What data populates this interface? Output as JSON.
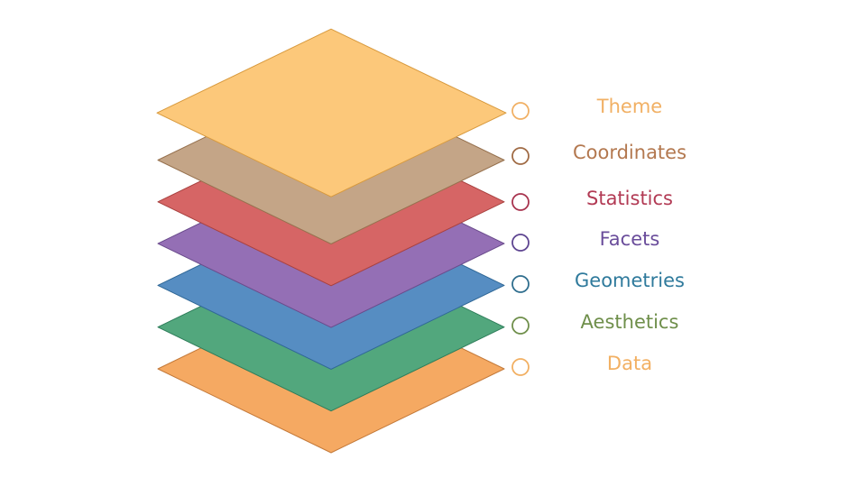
{
  "layers": [
    {
      "key": "data",
      "label": "Data",
      "fill": "#F5A962",
      "stroke": "#C47A3A",
      "label_color": "#F2B063",
      "marker_color": "#F2B063"
    },
    {
      "key": "aesthetics",
      "label": "Aesthetics",
      "fill": "#52A77D",
      "stroke": "#2E7D5A",
      "label_color": "#6F8F4B",
      "marker_color": "#6F8F4B"
    },
    {
      "key": "geometries",
      "label": "Geometries",
      "fill": "#568DC2",
      "stroke": "#2F6796",
      "label_color": "#2F7A9C",
      "marker_color": "#2F6E8E"
    },
    {
      "key": "facets",
      "label": "Facets",
      "fill": "#946FB5",
      "stroke": "#6A4B8C",
      "label_color": "#6A4D9B",
      "marker_color": "#5E4591"
    },
    {
      "key": "statistics",
      "label": "Statistics",
      "fill": "#D66565",
      "stroke": "#A8413F",
      "label_color": "#B23A54",
      "marker_color": "#A8344F"
    },
    {
      "key": "coordinates",
      "label": "Coordinates",
      "fill": "#C4A587",
      "stroke": "#96714E",
      "label_color": "#B3784F",
      "marker_color": "#A06B45"
    },
    {
      "key": "theme",
      "label": "Theme",
      "fill": "#FCC87A",
      "stroke": "#D89A3E",
      "label_color": "#F1B064",
      "marker_color": "#F1B064"
    }
  ]
}
